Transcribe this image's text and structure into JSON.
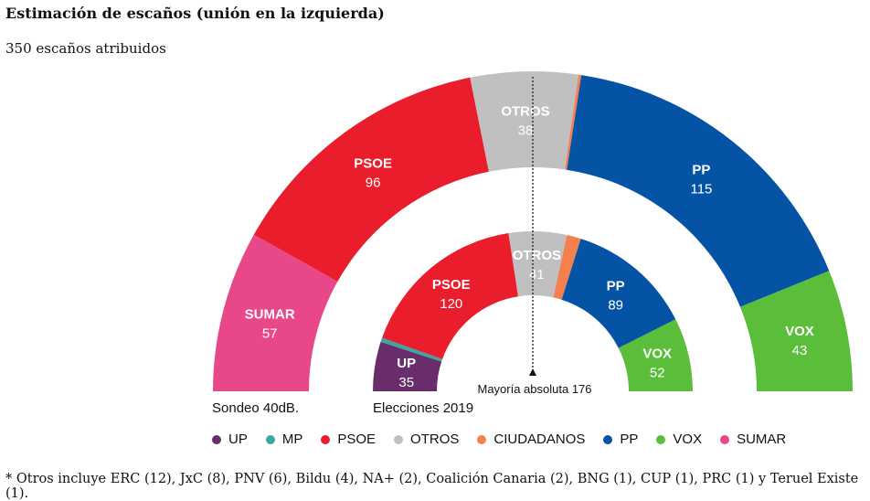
{
  "title": "Estimación de escaños (unión en la izquierda)",
  "subtitle": "350 escaños atribuidos",
  "chart_data": [
    {
      "type": "pie",
      "variant": "semicircle-donut",
      "caption": "Sondeo 40dB.",
      "categories": [
        "SUMAR",
        "PSOE",
        "OTROS",
        "CIUDADANOS",
        "PP",
        "VOX"
      ],
      "values": [
        57,
        96,
        38,
        1,
        115,
        43
      ]
    },
    {
      "type": "pie",
      "variant": "semicircle-donut",
      "caption": "Elecciones 2019",
      "categories": [
        "UP",
        "MP",
        "PSOE",
        "OTROS",
        "CIUDADANOS",
        "PP",
        "VOX"
      ],
      "values": [
        35,
        3,
        120,
        41,
        10,
        89,
        52
      ]
    }
  ],
  "majority_label": "Mayoría absoluta 176",
  "colors": {
    "UP": "#692d6b",
    "MP": "#3aa8a0",
    "PSOE": "#e91d2b",
    "OTROS": "#c0c0c0",
    "CIUDADANOS": "#f4804e",
    "PP": "#0553a4",
    "VOX": "#5bbe3a",
    "SUMAR": "#e8488a"
  },
  "legend": [
    "UP",
    "MP",
    "PSOE",
    "OTROS",
    "CIUDADANOS",
    "PP",
    "VOX",
    "SUMAR"
  ],
  "footnote": "* Otros incluye ERC (12), JxC (8), PNV (6), Bildu (4), NA+ (2), Coalición Canaria (2), BNG (1), CUP (1), PRC (1) y Teruel Existe (1)."
}
